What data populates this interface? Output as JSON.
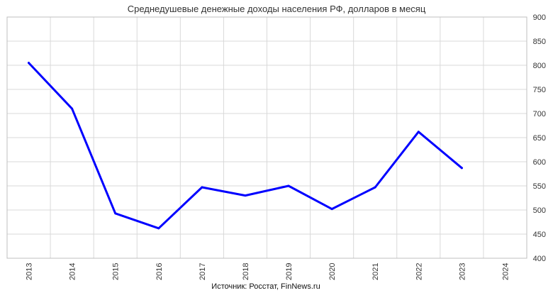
{
  "chart_data": {
    "type": "line",
    "title": "Среднедушевые денежные доходы населения РФ, долларов в месяц",
    "source": "Источник: Росстат, FinNews.ru",
    "categories": [
      "2013",
      "2014",
      "2015",
      "2016",
      "2017",
      "2018",
      "2019",
      "2020",
      "2021",
      "2022",
      "2023",
      "2024"
    ],
    "series": [
      {
        "values": [
          805,
          710,
          493,
          462,
          547,
          530,
          550,
          502,
          547,
          662,
          587,
          null
        ]
      }
    ],
    "ylim": [
      400,
      900
    ],
    "yticks": [
      "400",
      "450",
      "500",
      "550",
      "600",
      "650",
      "700",
      "750",
      "800",
      "850",
      "900"
    ],
    "y_axis_position": "right",
    "grid": true,
    "legend": "none",
    "colors": {
      "line": "#0000ff",
      "grid": "#d9d9d9",
      "axis": "#bfbfbf"
    }
  }
}
